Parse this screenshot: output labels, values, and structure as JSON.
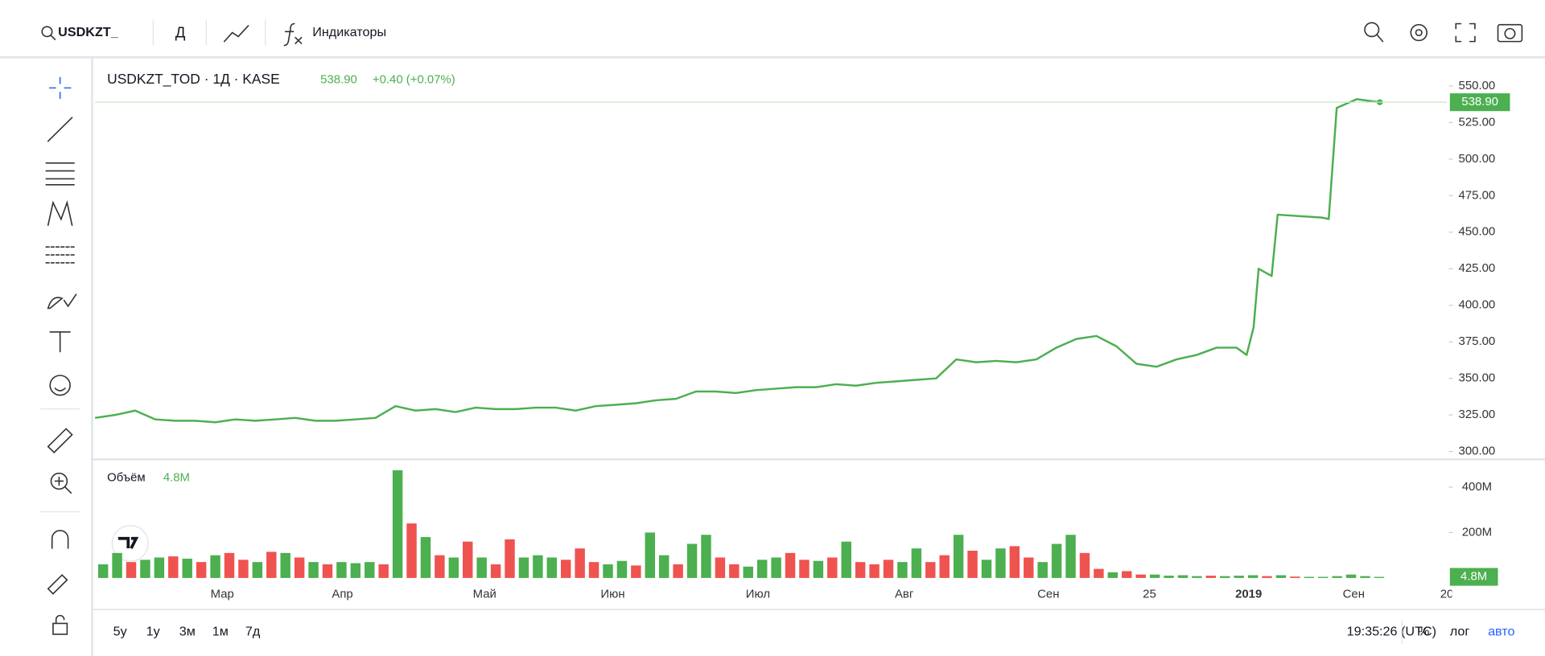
{
  "toolbar": {
    "symbol": "USDKZT_",
    "interval": "Д",
    "indicators": "Индикаторы"
  },
  "chart_data": [
    {
      "type": "line",
      "title": "USDKZT_TOD · 1Д · KASE",
      "change": "+0.40 (+0.07%)",
      "color": "#4caf50",
      "x": [
        0,
        1,
        2,
        3,
        4,
        5,
        6,
        7,
        8,
        9,
        10,
        11,
        12,
        13,
        14,
        15,
        16,
        17,
        18,
        19,
        20,
        21,
        22,
        23,
        24,
        25,
        26,
        27,
        28,
        29,
        30,
        31,
        32,
        33,
        34,
        35,
        36,
        37,
        38,
        39,
        40,
        41,
        42,
        43,
        44,
        45,
        46,
        47,
        48,
        49,
        50,
        51,
        52,
        53,
        54,
        55,
        56,
        57,
        57.5,
        57.85,
        58.1,
        58.75,
        59.05,
        61.25,
        61.6,
        62,
        63,
        64.15
      ],
      "values": [
        323,
        325,
        328,
        322,
        321,
        321,
        320,
        322,
        321,
        322,
        323,
        321,
        321,
        322,
        323,
        331,
        328,
        329,
        327,
        330,
        329,
        329,
        330,
        330,
        328,
        331,
        332,
        333,
        335,
        336,
        341,
        341,
        340,
        342,
        343,
        344,
        344,
        346,
        345,
        347,
        348,
        349,
        350,
        363,
        361,
        362,
        361,
        363,
        371,
        377,
        379,
        372,
        360,
        358,
        363,
        366,
        371,
        371,
        366,
        385,
        425,
        420,
        462,
        460,
        459,
        535,
        541,
        538.9
      ],
      "last_value": {
        "value": 538.9,
        "label": "538.90"
      },
      "xlim": [
        0,
        67.5
      ],
      "ylim": [
        294.6,
        564.9
      ],
      "grid": false,
      "yticks": [
        {
          "value": 300,
          "label": "300.00"
        },
        {
          "value": 325,
          "label": "325.00"
        },
        {
          "value": 350,
          "label": "350.00"
        },
        {
          "value": 375,
          "label": "375.00"
        },
        {
          "value": 400,
          "label": "400.00"
        },
        {
          "value": 425,
          "label": "425.00"
        },
        {
          "value": 450,
          "label": "450.00"
        },
        {
          "value": 475,
          "label": "475.00"
        },
        {
          "value": 500,
          "label": "500.00"
        },
        {
          "value": 525,
          "label": "525.00"
        },
        {
          "value": 550,
          "label": "550.00"
        }
      ],
      "xticks": [
        {
          "value": 6.35,
          "label": "Мар"
        },
        {
          "value": 12.35,
          "label": "Апр"
        },
        {
          "value": 19.45,
          "label": "Май"
        },
        {
          "value": 25.85,
          "label": "Июн"
        },
        {
          "value": 33.1,
          "label": "Июл"
        },
        {
          "value": 40.4,
          "label": "Авг"
        },
        {
          "value": 47.6,
          "label": "Сен"
        },
        {
          "value": 52.65,
          "label": "25"
        },
        {
          "value": 57.6,
          "label": "2019"
        },
        {
          "value": 62.85,
          "label": "Сен"
        },
        {
          "value": 67.5,
          "label": "20"
        }
      ]
    },
    {
      "type": "bar",
      "title": "Объём",
      "values": [
        60,
        110,
        70,
        80,
        90,
        95,
        85,
        70,
        100,
        110,
        80,
        70,
        115,
        110,
        90,
        70,
        60,
        70,
        65,
        70,
        60,
        474,
        240,
        180,
        100,
        90,
        160,
        90,
        60,
        170,
        90,
        100,
        90,
        80,
        130,
        70,
        60,
        75,
        55,
        200,
        100,
        60,
        150,
        190,
        90,
        60,
        50,
        80,
        90,
        110,
        80,
        75,
        90,
        160,
        70,
        60,
        80,
        70,
        130,
        70,
        100,
        190,
        120,
        80,
        130,
        140,
        90,
        70,
        150,
        190,
        110,
        40,
        25,
        30,
        15,
        15,
        10,
        12,
        8,
        10,
        8,
        10,
        12,
        8,
        12,
        6,
        5,
        5,
        8,
        15,
        8,
        4.8
      ],
      "colors": [
        "#4caf50",
        "#4caf50",
        "#ef5350",
        "#4caf50",
        "#4caf50",
        "#ef5350",
        "#4caf50",
        "#ef5350",
        "#4caf50",
        "#ef5350",
        "#ef5350",
        "#4caf50",
        "#ef5350",
        "#4caf50",
        "#ef5350",
        "#4caf50",
        "#ef5350",
        "#4caf50",
        "#4caf50",
        "#4caf50",
        "#ef5350",
        "#4caf50",
        "#ef5350",
        "#4caf50",
        "#ef5350",
        "#4caf50",
        "#ef5350",
        "#4caf50",
        "#ef5350",
        "#ef5350",
        "#4caf50",
        "#4caf50",
        "#4caf50",
        "#ef5350",
        "#ef5350",
        "#ef5350",
        "#4caf50",
        "#4caf50",
        "#ef5350",
        "#4caf50",
        "#4caf50",
        "#ef5350",
        "#4caf50",
        "#4caf50",
        "#ef5350",
        "#ef5350",
        "#4caf50",
        "#4caf50",
        "#4caf50",
        "#ef5350",
        "#ef5350",
        "#4caf50",
        "#ef5350",
        "#4caf50",
        "#ef5350",
        "#ef5350",
        "#ef5350",
        "#4caf50",
        "#4caf50",
        "#ef5350",
        "#ef5350",
        "#4caf50",
        "#ef5350",
        "#4caf50",
        "#4caf50",
        "#ef5350",
        "#ef5350",
        "#4caf50",
        "#4caf50",
        "#4caf50",
        "#ef5350",
        "#ef5350",
        "#4caf50",
        "#ef5350",
        "#ef5350",
        "#4caf50",
        "#4caf50",
        "#4caf50",
        "#4caf50",
        "#ef5350",
        "#4caf50",
        "#4caf50",
        "#4caf50",
        "#ef5350",
        "#4caf50",
        "#ef5350",
        "#4caf50",
        "#4caf50",
        "#4caf50",
        "#4caf50",
        "#4caf50",
        "#4caf50"
      ],
      "last_value": {
        "value": 4.8,
        "label": "4.8M"
      },
      "ylim": [
        0,
        522
      ],
      "yticks": [
        {
          "value": 200,
          "label": "200M"
        },
        {
          "value": 400,
          "label": "400M"
        }
      ]
    }
  ],
  "footer": {
    "ranges": [
      "5y",
      "1y",
      "3м",
      "1м",
      "7д"
    ],
    "time": "19:35:26 (UTC)",
    "percent": "%",
    "log": "лог",
    "auto": "авто"
  }
}
